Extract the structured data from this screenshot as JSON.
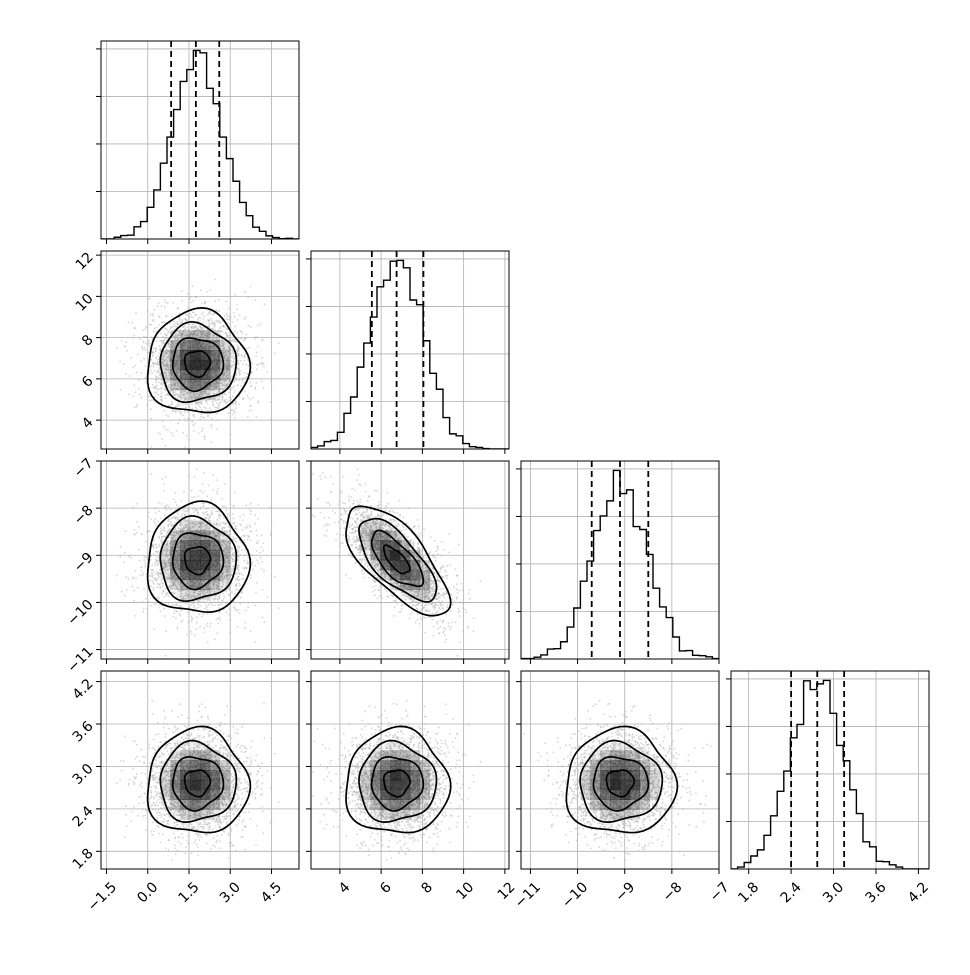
{
  "chart_data": {
    "type": "corner",
    "variables": [
      {
        "id": "p0",
        "range": [
          -1.7,
          5.5
        ],
        "ticks": [
          -1.5,
          0.0,
          1.5,
          3.0,
          4.5
        ],
        "tick_labels": [
          "−1.5",
          "0.0",
          "1.5",
          "3.0",
          "4.5"
        ],
        "center": 1.8,
        "sigma": 0.92,
        "quantiles": [
          0.85,
          1.75,
          2.6
        ]
      },
      {
        "id": "p1",
        "range": [
          2.6,
          12.2
        ],
        "ticks": [
          4,
          6,
          8,
          10,
          12
        ],
        "tick_labels": [
          "4",
          "6",
          "8",
          "10",
          "12"
        ],
        "center": 6.75,
        "sigma": 1.25,
        "quantiles": [
          5.55,
          6.75,
          8.05
        ]
      },
      {
        "id": "p2",
        "range": [
          -11.2,
          -7.0
        ],
        "ticks": [
          -11,
          -10,
          -9,
          -8,
          -7
        ],
        "tick_labels": [
          "−11",
          "−10",
          "−9",
          "−8",
          "−7"
        ],
        "center": -9.1,
        "sigma": 0.58,
        "quantiles": [
          -9.7,
          -9.1,
          -8.5
        ]
      },
      {
        "id": "p3",
        "range": [
          1.55,
          4.35
        ],
        "ticks": [
          1.8,
          2.4,
          3.0,
          3.6,
          4.2
        ],
        "tick_labels": [
          "1.8",
          "2.4",
          "3.0",
          "3.6",
          "4.2"
        ],
        "center": 2.77,
        "sigma": 0.37,
        "quantiles": [
          2.4,
          2.77,
          3.15
        ]
      }
    ],
    "correlations": [
      [
        1,
        0,
        0,
        0
      ],
      [
        0,
        1,
        -0.7,
        0
      ],
      [
        0,
        -0.7,
        1,
        0
      ],
      [
        0,
        0,
        0,
        1
      ]
    ],
    "histogram_bins": 30,
    "quantile_lines": "dashed",
    "contour_levels_sigma": [
      0.5,
      1.0,
      1.5,
      2.0
    ],
    "grid": true,
    "colors": {
      "line": "#000000",
      "scatter": "#b4b4b4",
      "grid": "#b0b0b0",
      "density": "#000000"
    }
  }
}
